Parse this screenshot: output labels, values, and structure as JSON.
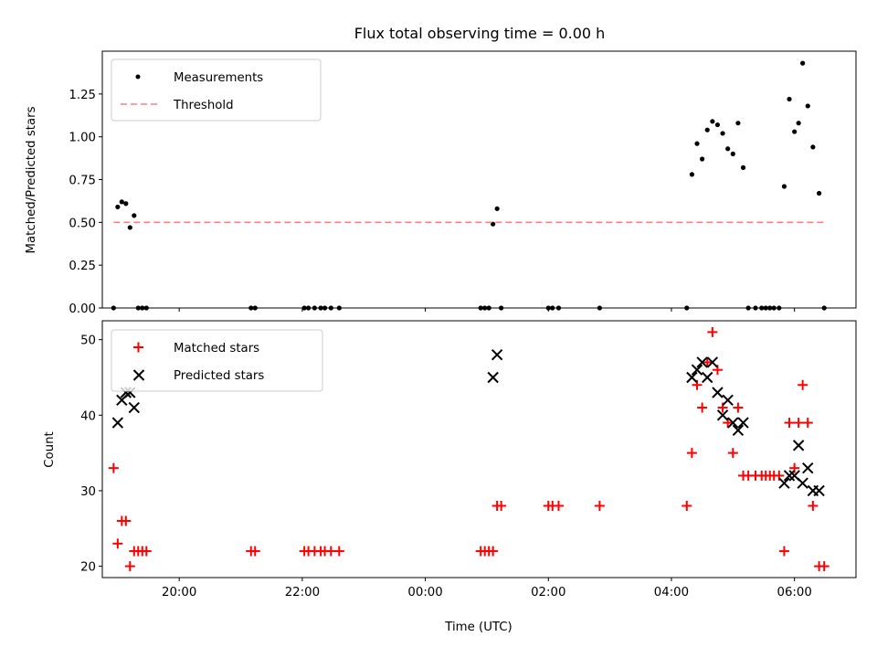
{
  "chart_data": [
    {
      "type": "scatter",
      "title": "Flux total observing time = 0.00 h",
      "xlabel": "",
      "ylabel": "Matched/Predicted stars",
      "ylim": [
        0,
        1.5
      ],
      "yticks": [
        "0.00",
        "0.25",
        "0.50",
        "0.75",
        "1.00",
        "1.25"
      ],
      "xlim": [
        "18:45",
        "07:00"
      ],
      "legend_position": "upper-left",
      "series": [
        {
          "name": "Measurements",
          "color": "#000000",
          "marker": "dot",
          "points": [
            [
              "18:56",
              0.0
            ],
            [
              "19:00",
              0.59
            ],
            [
              "19:04",
              0.62
            ],
            [
              "19:08",
              0.61
            ],
            [
              "19:12",
              0.47
            ],
            [
              "19:16",
              0.54
            ],
            [
              "19:20",
              0.0
            ],
            [
              "19:24",
              0.0
            ],
            [
              "19:28",
              0.0
            ],
            [
              "21:10",
              0.0
            ],
            [
              "21:14",
              0.0
            ],
            [
              "22:02",
              0.0
            ],
            [
              "22:06",
              0.0
            ],
            [
              "22:12",
              0.0
            ],
            [
              "22:18",
              0.0
            ],
            [
              "22:22",
              0.0
            ],
            [
              "22:28",
              0.0
            ],
            [
              "22:36",
              0.0
            ],
            [
              "00:54",
              0.0
            ],
            [
              "00:58",
              0.0
            ],
            [
              "01:02",
              0.0
            ],
            [
              "01:06",
              0.49
            ],
            [
              "01:10",
              0.58
            ],
            [
              "01:14",
              0.0
            ],
            [
              "02:00",
              0.0
            ],
            [
              "02:04",
              0.0
            ],
            [
              "02:10",
              0.0
            ],
            [
              "02:50",
              0.0
            ],
            [
              "04:15",
              0.0
            ],
            [
              "04:20",
              0.78
            ],
            [
              "04:25",
              0.96
            ],
            [
              "04:30",
              0.87
            ],
            [
              "04:35",
              1.04
            ],
            [
              "04:40",
              1.09
            ],
            [
              "04:45",
              1.07
            ],
            [
              "04:50",
              1.02
            ],
            [
              "04:55",
              0.93
            ],
            [
              "05:00",
              0.9
            ],
            [
              "05:05",
              1.08
            ],
            [
              "05:10",
              0.82
            ],
            [
              "05:15",
              0.0
            ],
            [
              "05:22",
              0.0
            ],
            [
              "05:28",
              0.0
            ],
            [
              "05:32",
              0.0
            ],
            [
              "05:36",
              0.0
            ],
            [
              "05:40",
              0.0
            ],
            [
              "05:45",
              0.0
            ],
            [
              "05:50",
              0.71
            ],
            [
              "05:55",
              1.22
            ],
            [
              "06:00",
              1.03
            ],
            [
              "06:04",
              1.08
            ],
            [
              "06:08",
              1.43
            ],
            [
              "06:13",
              1.18
            ],
            [
              "06:18",
              0.94
            ],
            [
              "06:24",
              0.67
            ],
            [
              "06:29",
              0.0
            ]
          ]
        },
        {
          "name": "Threshold",
          "color": "#ff7f7f",
          "style": "dashed-line",
          "points": [
            [
              "18:56",
              0.5
            ],
            [
              "06:30",
              0.5
            ]
          ]
        }
      ]
    },
    {
      "type": "scatter",
      "title": "",
      "xlabel": "Time (UTC)",
      "ylabel": "Count",
      "ylim": [
        18.5,
        52.5
      ],
      "yticks": [
        "20",
        "30",
        "40",
        "50"
      ],
      "xlim": [
        "18:45",
        "07:00"
      ],
      "xticks": [
        "20:00",
        "22:00",
        "00:00",
        "02:00",
        "04:00",
        "06:00"
      ],
      "legend_position": "upper-left",
      "series": [
        {
          "name": "Matched stars",
          "color": "#ff0000",
          "marker": "plus",
          "points": [
            [
              "18:56",
              33
            ],
            [
              "19:00",
              23
            ],
            [
              "19:04",
              26
            ],
            [
              "19:08",
              26
            ],
            [
              "19:12",
              20
            ],
            [
              "19:16",
              22
            ],
            [
              "19:20",
              22
            ],
            [
              "19:24",
              22
            ],
            [
              "19:28",
              22
            ],
            [
              "21:10",
              22
            ],
            [
              "21:14",
              22
            ],
            [
              "22:02",
              22
            ],
            [
              "22:06",
              22
            ],
            [
              "22:12",
              22
            ],
            [
              "22:18",
              22
            ],
            [
              "22:22",
              22
            ],
            [
              "22:28",
              22
            ],
            [
              "22:36",
              22
            ],
            [
              "00:54",
              22
            ],
            [
              "00:58",
              22
            ],
            [
              "01:02",
              22
            ],
            [
              "01:06",
              22
            ],
            [
              "01:10",
              28
            ],
            [
              "01:14",
              28
            ],
            [
              "02:00",
              28
            ],
            [
              "02:04",
              28
            ],
            [
              "02:10",
              28
            ],
            [
              "02:50",
              28
            ],
            [
              "04:15",
              28
            ],
            [
              "04:20",
              35
            ],
            [
              "04:25",
              44
            ],
            [
              "04:30",
              41
            ],
            [
              "04:35",
              47
            ],
            [
              "04:40",
              51
            ],
            [
              "04:45",
              46
            ],
            [
              "04:50",
              41
            ],
            [
              "04:55",
              39
            ],
            [
              "05:00",
              35
            ],
            [
              "05:05",
              41
            ],
            [
              "05:10",
              32
            ],
            [
              "05:15",
              32
            ],
            [
              "05:22",
              32
            ],
            [
              "05:28",
              32
            ],
            [
              "05:32",
              32
            ],
            [
              "05:36",
              32
            ],
            [
              "05:40",
              32
            ],
            [
              "05:45",
              32
            ],
            [
              "05:50",
              22
            ],
            [
              "05:55",
              39
            ],
            [
              "06:00",
              33
            ],
            [
              "06:04",
              39
            ],
            [
              "06:08",
              44
            ],
            [
              "06:13",
              39
            ],
            [
              "06:18",
              28
            ],
            [
              "06:24",
              20
            ],
            [
              "06:29",
              20
            ]
          ]
        },
        {
          "name": "Predicted stars",
          "color": "#000000",
          "marker": "x",
          "points": [
            [
              "19:00",
              39
            ],
            [
              "19:04",
              42
            ],
            [
              "19:08",
              43
            ],
            [
              "19:12",
              43
            ],
            [
              "19:16",
              41
            ],
            [
              "01:06",
              45
            ],
            [
              "01:10",
              48
            ],
            [
              "04:20",
              45
            ],
            [
              "04:25",
              46
            ],
            [
              "04:30",
              47
            ],
            [
              "04:35",
              45
            ],
            [
              "04:40",
              47
            ],
            [
              "04:45",
              43
            ],
            [
              "04:50",
              40
            ],
            [
              "04:55",
              42
            ],
            [
              "05:00",
              39
            ],
            [
              "05:05",
              38
            ],
            [
              "05:10",
              39
            ],
            [
              "05:50",
              31
            ],
            [
              "05:55",
              32
            ],
            [
              "06:00",
              32
            ],
            [
              "06:04",
              36
            ],
            [
              "06:08",
              31
            ],
            [
              "06:13",
              33
            ],
            [
              "06:18",
              30
            ],
            [
              "06:24",
              30
            ]
          ]
        }
      ]
    }
  ]
}
